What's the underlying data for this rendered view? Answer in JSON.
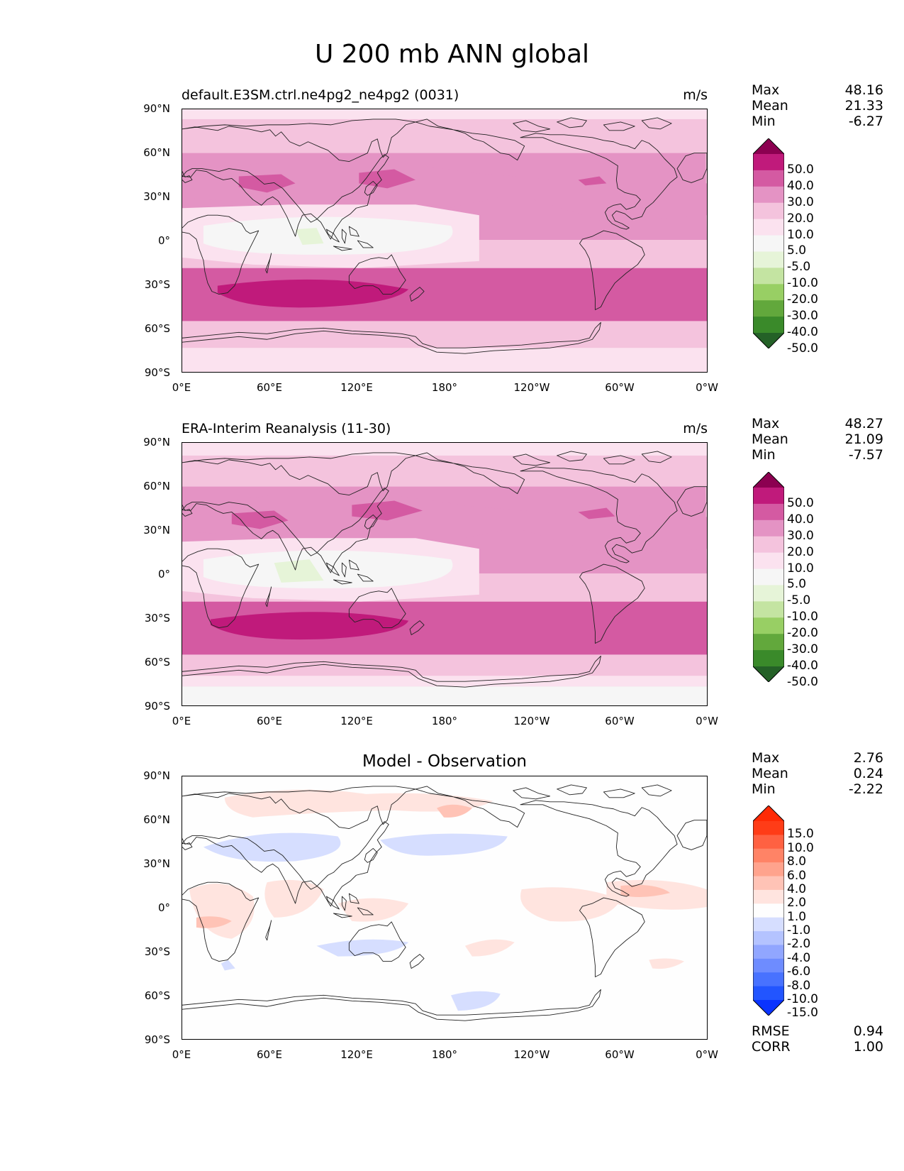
{
  "figure": {
    "title": "U 200 mb ANN global"
  },
  "colors": {
    "main": [
      "#246127",
      "#3a8a2a",
      "#62a83c",
      "#98cf64",
      "#c4e4a2",
      "#e6f4d8",
      "#f6f6f6",
      "#fbe2ef",
      "#f4c3dd",
      "#e493c4",
      "#d45aa2",
      "#c01a7b",
      "#8c0051"
    ],
    "diff": [
      "#0a33ff",
      "#2255ff",
      "#4872ff",
      "#6e8cff",
      "#91a6ff",
      "#b4c3ff",
      "#d6deff",
      "#fefefe",
      "#ffe4df",
      "#ffc3b6",
      "#ffa38d",
      "#ff8366",
      "#ff6142",
      "#ff3c17",
      "#ff2a05"
    ]
  },
  "axes": {
    "x_ticks": [
      "0°E",
      "60°E",
      "120°E",
      "180°",
      "120°W",
      "60°W",
      "0°W"
    ],
    "y_ticks": [
      "90°N",
      "60°N",
      "30°N",
      "0°",
      "30°S",
      "60°S",
      "90°S"
    ]
  },
  "panels": [
    {
      "title": "default.E3SM.ctrl.ne4pg2_ne4pg2 (0031)",
      "units": "m/s",
      "stats": [
        {
          "label": "Max",
          "value": "48.16"
        },
        {
          "label": "Mean",
          "value": "21.33"
        },
        {
          "label": "Min",
          "value": "-6.27"
        }
      ],
      "colorbar_labels": [
        "50.0",
        "40.0",
        "30.0",
        "20.0",
        "10.0",
        "5.0",
        "-5.0",
        "-10.0",
        "-20.0",
        "-30.0",
        "-40.0",
        "-50.0"
      ]
    },
    {
      "title": "ERA-Interim Reanalysis (11-30)",
      "units": "m/s",
      "stats": [
        {
          "label": "Max",
          "value": "48.27"
        },
        {
          "label": "Mean",
          "value": "21.09"
        },
        {
          "label": "Min",
          "value": "-7.57"
        }
      ],
      "colorbar_labels": [
        "50.0",
        "40.0",
        "30.0",
        "20.0",
        "10.0",
        "5.0",
        "-5.0",
        "-10.0",
        "-20.0",
        "-30.0",
        "-40.0",
        "-50.0"
      ]
    },
    {
      "title": "Model - Observation",
      "units": "",
      "stats": [
        {
          "label": "Max",
          "value": "2.76"
        },
        {
          "label": "Mean",
          "value": "0.24"
        },
        {
          "label": "Min",
          "value": "-2.22"
        }
      ],
      "colorbar_labels": [
        "15.0",
        "10.0",
        "8.0",
        "6.0",
        "4.0",
        "2.0",
        "1.0",
        "-1.0",
        "-2.0",
        "-4.0",
        "-6.0",
        "-8.0",
        "-10.0",
        "-15.0"
      ],
      "metrics": [
        {
          "label": "RMSE",
          "value": "0.94"
        },
        {
          "label": "CORR",
          "value": "1.00"
        }
      ]
    }
  ]
}
